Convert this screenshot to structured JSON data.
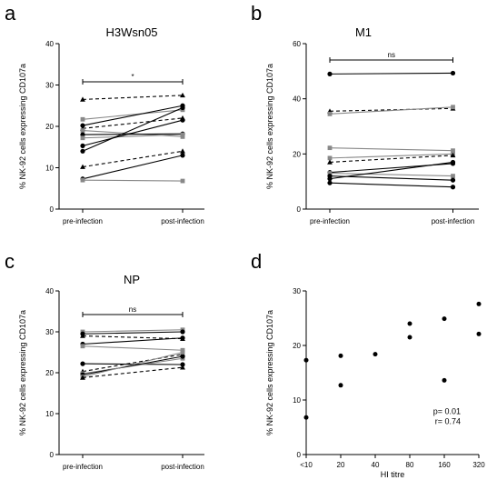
{
  "chart_data": [
    {
      "panel": "a",
      "type": "line",
      "title": "H3Wsn05",
      "ylabel": "% NK-92 cells expressing CD107a",
      "xlabel": "",
      "categories": [
        "pre-infection",
        "post-infection"
      ],
      "ylim": [
        0,
        40
      ],
      "yticks": [
        0,
        10,
        20,
        30,
        40
      ],
      "grid": false,
      "significance": "*",
      "series": [
        {
          "marker": "triangle",
          "dash": true,
          "color": "#000000",
          "values": [
            26.5,
            27.5
          ]
        },
        {
          "marker": "square",
          "dash": false,
          "color": "#888888",
          "values": [
            21.7,
            24.0
          ]
        },
        {
          "marker": "circle",
          "dash": false,
          "color": "#000000",
          "values": [
            20.2,
            25.0
          ]
        },
        {
          "marker": "triangle",
          "dash": true,
          "color": "#000000",
          "values": [
            19.5,
            22.0
          ]
        },
        {
          "marker": "square",
          "dash": false,
          "color": "#888888",
          "values": [
            19.0,
            17.5
          ]
        },
        {
          "marker": "circle",
          "dash": false,
          "color": "#000000",
          "values": [
            18.0,
            18.2
          ]
        },
        {
          "marker": "square",
          "dash": false,
          "color": "#888888",
          "values": [
            17.2,
            18.0
          ]
        },
        {
          "marker": "circle",
          "dash": false,
          "color": "#000000",
          "values": [
            15.3,
            21.5
          ]
        },
        {
          "marker": "circle",
          "dash": false,
          "color": "#000000",
          "values": [
            14.0,
            24.5
          ]
        },
        {
          "marker": "triangle",
          "dash": true,
          "color": "#000000",
          "values": [
            10.2,
            14.0
          ]
        },
        {
          "marker": "circle",
          "dash": false,
          "color": "#000000",
          "values": [
            7.3,
            13.0
          ]
        },
        {
          "marker": "square",
          "dash": false,
          "color": "#888888",
          "values": [
            7.0,
            6.8
          ]
        }
      ]
    },
    {
      "panel": "b",
      "type": "line",
      "title": "M1",
      "ylabel": "% NK-92 cells expressing CD107a",
      "xlabel": "",
      "categories": [
        "pre-infection",
        "post-infection"
      ],
      "ylim": [
        0,
        60
      ],
      "yticks": [
        0,
        20,
        40,
        60
      ],
      "grid": false,
      "significance": "ns",
      "series": [
        {
          "marker": "circle",
          "dash": false,
          "color": "#000000",
          "values": [
            49.0,
            49.3
          ]
        },
        {
          "marker": "triangle",
          "dash": true,
          "color": "#000000",
          "values": [
            35.5,
            36.5
          ]
        },
        {
          "marker": "square",
          "dash": false,
          "color": "#888888",
          "values": [
            34.5,
            37.0
          ]
        },
        {
          "marker": "square",
          "dash": false,
          "color": "#888888",
          "values": [
            22.2,
            21.2
          ]
        },
        {
          "marker": "square",
          "dash": false,
          "color": "#888888",
          "values": [
            18.5,
            20.0
          ]
        },
        {
          "marker": "triangle",
          "dash": true,
          "color": "#000000",
          "values": [
            17.0,
            19.5
          ]
        },
        {
          "marker": "circle",
          "dash": false,
          "color": "#000000",
          "values": [
            13.3,
            16.5
          ]
        },
        {
          "marker": "square",
          "dash": false,
          "color": "#888888",
          "values": [
            13.0,
            12.0
          ]
        },
        {
          "marker": "circle",
          "dash": false,
          "color": "#000000",
          "values": [
            12.0,
            10.5
          ]
        },
        {
          "marker": "circle",
          "dash": false,
          "color": "#000000",
          "values": [
            11.0,
            17.0
          ]
        },
        {
          "marker": "circle",
          "dash": false,
          "color": "#000000",
          "values": [
            9.5,
            8.0
          ]
        }
      ]
    },
    {
      "panel": "c",
      "type": "line",
      "title": "NP",
      "ylabel": "% NK-92 cells expressing CD107a",
      "xlabel": "",
      "categories": [
        "pre-infection",
        "post-infection"
      ],
      "ylim": [
        0,
        40
      ],
      "yticks": [
        0,
        10,
        20,
        30,
        40
      ],
      "grid": false,
      "significance": "ns",
      "series": [
        {
          "marker": "square",
          "dash": false,
          "color": "#888888",
          "values": [
            30.0,
            30.5
          ]
        },
        {
          "marker": "circle",
          "dash": false,
          "color": "#000000",
          "values": [
            29.5,
            30.0
          ]
        },
        {
          "marker": "triangle",
          "dash": true,
          "color": "#000000",
          "values": [
            29.0,
            28.3
          ]
        },
        {
          "marker": "circle",
          "dash": false,
          "color": "#000000",
          "values": [
            27.0,
            28.5
          ]
        },
        {
          "marker": "square",
          "dash": false,
          "color": "#888888",
          "values": [
            26.5,
            25.5
          ]
        },
        {
          "marker": "circle",
          "dash": false,
          "color": "#000000",
          "values": [
            22.2,
            22.0
          ]
        },
        {
          "marker": "triangle",
          "dash": true,
          "color": "#000000",
          "values": [
            20.3,
            24.5
          ]
        },
        {
          "marker": "square",
          "dash": false,
          "color": "#888888",
          "values": [
            19.8,
            23.5
          ]
        },
        {
          "marker": "circle",
          "dash": false,
          "color": "#000000",
          "values": [
            19.5,
            24.0
          ]
        },
        {
          "marker": "square",
          "dash": false,
          "color": "#888888",
          "values": [
            19.0,
            25.0
          ]
        },
        {
          "marker": "triangle",
          "dash": true,
          "color": "#000000",
          "values": [
            18.8,
            21.3
          ]
        }
      ]
    },
    {
      "panel": "d",
      "type": "scatter",
      "title": "",
      "ylabel": "% NK-92 cells expressing CD107a",
      "xlabel": "HI titre",
      "x_ticks": [
        "<10",
        "20",
        "40",
        "80",
        "160",
        "320"
      ],
      "ylim": [
        0,
        30
      ],
      "yticks": [
        0,
        10,
        20,
        30
      ],
      "grid": false,
      "annotations": [
        "p= 0.01",
        "r= 0.74"
      ],
      "points": [
        {
          "x": "<10",
          "y": 17.3
        },
        {
          "x": "<10",
          "y": 6.8
        },
        {
          "x": "20",
          "y": 18.1
        },
        {
          "x": "20",
          "y": 12.7
        },
        {
          "x": "40",
          "y": 18.4
        },
        {
          "x": "80",
          "y": 24.0
        },
        {
          "x": "80",
          "y": 21.5
        },
        {
          "x": "160",
          "y": 24.9
        },
        {
          "x": "160",
          "y": 13.6
        },
        {
          "x": "320",
          "y": 27.6
        },
        {
          "x": "320",
          "y": 22.1
        }
      ]
    }
  ]
}
